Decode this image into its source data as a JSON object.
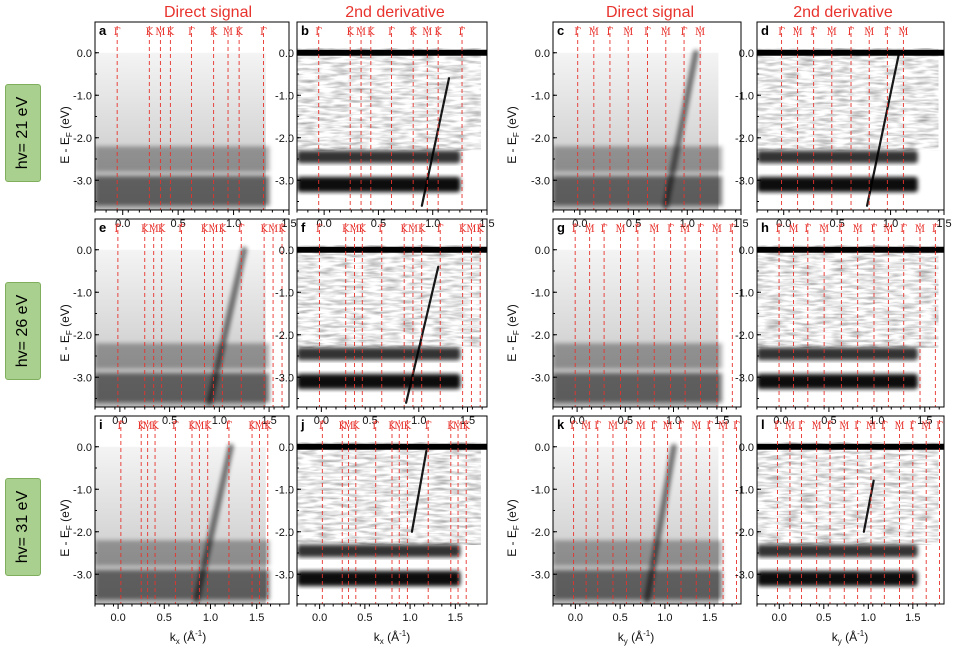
{
  "headers": {
    "left_direct": "Direct signal",
    "left_deriv": "2nd derivative",
    "right_direct": "Direct signal",
    "right_deriv": "2nd derivative"
  },
  "row_labels": [
    "hv= 21 eV",
    "hv= 26 eV",
    "hv= 31 eV"
  ],
  "axis_text": {
    "ylabel_main": "E - E",
    "ylabel_sub": "F",
    "ylabel_unit": " (eV)",
    "kx_main": "k",
    "kx_sub": "x",
    "ky_main": "k",
    "ky_sub": "y",
    "kunit": " (Å",
    "kunit_sup": "-1",
    "kunit_close": ")"
  },
  "colors": {
    "header_red": "#e8322c",
    "marker_red": "#e8322c",
    "row_label_green": "#a9d08e"
  },
  "chart_data": [
    {
      "type": "heatmap",
      "panel": "a",
      "photon_energy": "hv= 21 eV",
      "mode": "Direct signal",
      "axis": "kx",
      "ylim": [
        -3.7,
        0.3
      ],
      "xlim": [
        -0.25,
        1.5
      ],
      "xticks": [
        0.0,
        0.5,
        1.0,
        1.5
      ],
      "yticks": [
        0.0,
        -1.0,
        -2.0,
        -3.0
      ],
      "points": [
        {
          "label": "Γ",
          "k": -0.05
        },
        {
          "label": "K",
          "k": 0.24
        },
        {
          "label": "M",
          "k": 0.34
        },
        {
          "label": "K",
          "k": 0.43
        },
        {
          "label": "Γ",
          "k": 0.62
        },
        {
          "label": "K",
          "k": 0.82
        },
        {
          "label": "M",
          "k": 0.95
        },
        {
          "label": "K",
          "k": 1.05
        },
        {
          "label": "Γ",
          "k": 1.27
        }
      ],
      "bands": {
        "valence": [
          {
            "e": -2.5,
            "w": 0.3,
            "s": 0.45
          },
          {
            "e": -3.25,
            "w": 0.35,
            "s": 0.75
          }
        ],
        "fade_start": -1.8
      },
      "dispersive_band": null
    },
    {
      "type": "heatmap",
      "panel": "b",
      "photon_energy": "hv= 21 eV",
      "mode": "2nd derivative",
      "axis": "kx",
      "ylim": [
        -3.7,
        0.3
      ],
      "xlim": [
        -0.25,
        1.5
      ],
      "xticks": [
        0.0,
        0.5,
        1.0,
        1.5
      ],
      "yticks": [
        0.0,
        -1.0,
        -2.0,
        -3.0
      ],
      "points": [
        {
          "label": "Γ",
          "k": -0.05
        },
        {
          "label": "K",
          "k": 0.24
        },
        {
          "label": "M",
          "k": 0.34
        },
        {
          "label": "K",
          "k": 0.43
        },
        {
          "label": "Γ",
          "k": 0.62
        },
        {
          "label": "K",
          "k": 0.82
        },
        {
          "label": "M",
          "k": 0.95
        },
        {
          "label": "K",
          "k": 1.05
        },
        {
          "label": "Γ",
          "k": 1.27
        }
      ],
      "bands": {
        "valence": [
          {
            "e": -2.45,
            "w": 0.15,
            "s": 0.8
          },
          {
            "e": -3.1,
            "w": 0.18,
            "s": 0.95
          }
        ],
        "fade_start": null
      },
      "dispersive_band": {
        "k_top": 1.15,
        "e_top": -0.6,
        "k_bottom": 0.9,
        "e_bottom": -3.6
      }
    },
    {
      "type": "heatmap",
      "panel": "c",
      "photon_energy": "hv= 21 eV",
      "mode": "Direct signal",
      "axis": "ky",
      "ylim": [
        -3.7,
        0.3
      ],
      "xlim": [
        -0.25,
        1.5
      ],
      "xticks": [
        0.0,
        0.5,
        1.0,
        1.5
      ],
      "yticks": [
        0.0,
        -1.0,
        -2.0,
        -3.0
      ],
      "points": [
        {
          "label": "Γ",
          "k": -0.02
        },
        {
          "label": "M",
          "k": 0.13
        },
        {
          "label": "Γ",
          "k": 0.28
        },
        {
          "label": "M",
          "k": 0.45
        },
        {
          "label": "Γ",
          "k": 0.63
        },
        {
          "label": "M",
          "k": 0.8
        },
        {
          "label": "Γ",
          "k": 0.97
        },
        {
          "label": "M",
          "k": 1.12
        }
      ],
      "bands": {
        "valence": [
          {
            "e": -2.5,
            "w": 0.3,
            "s": 0.45
          },
          {
            "e": -3.25,
            "w": 0.35,
            "s": 0.75
          }
        ],
        "fade_start": -1.8
      },
      "dispersive_band": {
        "k_top": 1.08,
        "e_top": 0.0,
        "k_bottom": 0.8,
        "e_bottom": -3.6
      }
    },
    {
      "type": "heatmap",
      "panel": "d",
      "photon_energy": "hv= 21 eV",
      "mode": "2nd derivative",
      "axis": "ky",
      "ylim": [
        -3.7,
        0.3
      ],
      "xlim": [
        -0.25,
        1.5
      ],
      "xticks": [
        0.0,
        0.5,
        1.0,
        1.5
      ],
      "yticks": [
        0.0,
        -1.0,
        -2.0,
        -3.0
      ],
      "points": [
        {
          "label": "Γ",
          "k": -0.02
        },
        {
          "label": "M",
          "k": 0.13
        },
        {
          "label": "Γ",
          "k": 0.28
        },
        {
          "label": "M",
          "k": 0.45
        },
        {
          "label": "Γ",
          "k": 0.63
        },
        {
          "label": "M",
          "k": 0.8
        },
        {
          "label": "Γ",
          "k": 0.97
        },
        {
          "label": "M",
          "k": 1.12
        }
      ],
      "bands": {
        "valence": [
          {
            "e": -2.45,
            "w": 0.15,
            "s": 0.8
          },
          {
            "e": -3.1,
            "w": 0.18,
            "s": 0.95
          }
        ],
        "fade_start": null
      },
      "dispersive_band": {
        "k_top": 1.08,
        "e_top": 0.0,
        "k_bottom": 0.78,
        "e_bottom": -3.6
      }
    },
    {
      "type": "heatmap",
      "panel": "e",
      "photon_energy": "hv= 26 eV",
      "mode": "Direct signal",
      "axis": "kx",
      "ylim": [
        -3.7,
        0.3
      ],
      "xlim": [
        -0.25,
        1.7
      ],
      "xticks": [
        0.0,
        0.5,
        1.0,
        1.5
      ],
      "yticks": [
        0.0,
        -1.0,
        -2.0,
        -3.0
      ],
      "points": [
        {
          "label": "Γ",
          "k": -0.02
        },
        {
          "label": "K",
          "k": 0.25
        },
        {
          "label": "M",
          "k": 0.34
        },
        {
          "label": "K",
          "k": 0.42
        },
        {
          "label": "Γ",
          "k": 0.62
        },
        {
          "label": "K",
          "k": 0.85
        },
        {
          "label": "M",
          "k": 0.94
        },
        {
          "label": "K",
          "k": 1.03
        },
        {
          "label": "Γ",
          "k": 1.22
        },
        {
          "label": "K",
          "k": 1.45
        },
        {
          "label": "M",
          "k": 1.54
        },
        {
          "label": "K",
          "k": 1.63
        }
      ],
      "bands": {
        "valence": [
          {
            "e": -2.5,
            "w": 0.3,
            "s": 0.45
          },
          {
            "e": -3.25,
            "w": 0.35,
            "s": 0.75
          }
        ],
        "fade_start": -1.8
      },
      "dispersive_band": {
        "k_top": 1.25,
        "e_top": 0.0,
        "k_bottom": 0.9,
        "e_bottom": -3.6
      }
    },
    {
      "type": "heatmap",
      "panel": "f",
      "photon_energy": "hv= 26 eV",
      "mode": "2nd derivative",
      "axis": "kx",
      "ylim": [
        -3.7,
        0.3
      ],
      "xlim": [
        -0.25,
        1.7
      ],
      "xticks": [
        0.0,
        0.5,
        1.0,
        1.5
      ],
      "yticks": [
        0.0,
        -1.0,
        -2.0,
        -3.0
      ],
      "points": [
        {
          "label": "Γ",
          "k": -0.02
        },
        {
          "label": "K",
          "k": 0.25
        },
        {
          "label": "M",
          "k": 0.34
        },
        {
          "label": "K",
          "k": 0.42
        },
        {
          "label": "Γ",
          "k": 0.62
        },
        {
          "label": "K",
          "k": 0.85
        },
        {
          "label": "M",
          "k": 0.94
        },
        {
          "label": "K",
          "k": 1.03
        },
        {
          "label": "Γ",
          "k": 1.22
        },
        {
          "label": "K",
          "k": 1.45
        },
        {
          "label": "M",
          "k": 1.54
        },
        {
          "label": "K",
          "k": 1.63
        }
      ],
      "bands": {
        "valence": [
          {
            "e": -2.45,
            "w": 0.15,
            "s": 0.8
          },
          {
            "e": -3.1,
            "w": 0.18,
            "s": 0.95
          }
        ],
        "fade_start": null
      },
      "dispersive_band": {
        "k_top": 1.2,
        "e_top": -0.4,
        "k_bottom": 0.87,
        "e_bottom": -3.6
      }
    },
    {
      "type": "heatmap",
      "panel": "g",
      "photon_energy": "hv= 26 eV",
      "mode": "Direct signal",
      "axis": "ky",
      "ylim": [
        -3.7,
        0.3
      ],
      "xlim": [
        -0.25,
        1.7
      ],
      "xticks": [
        0.0,
        0.5,
        1.0,
        1.5
      ],
      "yticks": [
        0.0,
        -1.0,
        -2.0,
        -3.0
      ],
      "points": [
        {
          "label": "Γ",
          "k": -0.02
        },
        {
          "label": "M",
          "k": 0.13
        },
        {
          "label": "Γ",
          "k": 0.28
        },
        {
          "label": "M",
          "k": 0.45
        },
        {
          "label": "Γ",
          "k": 0.63
        },
        {
          "label": "M",
          "k": 0.8
        },
        {
          "label": "Γ",
          "k": 0.97
        },
        {
          "label": "M",
          "k": 1.12
        },
        {
          "label": "Γ",
          "k": 1.28
        },
        {
          "label": "M",
          "k": 1.45
        },
        {
          "label": "Γ",
          "k": 1.61
        }
      ],
      "bands": {
        "valence": [
          {
            "e": -2.5,
            "w": 0.3,
            "s": 0.45
          },
          {
            "e": -3.25,
            "w": 0.35,
            "s": 0.75
          }
        ],
        "fade_start": -1.8
      },
      "dispersive_band": null
    },
    {
      "type": "heatmap",
      "panel": "h",
      "photon_energy": "hv= 26 eV",
      "mode": "2nd derivative",
      "axis": "ky",
      "ylim": [
        -3.7,
        0.3
      ],
      "xlim": [
        -0.25,
        1.7
      ],
      "xticks": [
        0.0,
        0.5,
        1.0,
        1.5
      ],
      "yticks": [
        0.0,
        -1.0,
        -2.0,
        -3.0
      ],
      "points": [
        {
          "label": "Γ",
          "k": -0.02
        },
        {
          "label": "M",
          "k": 0.13
        },
        {
          "label": "Γ",
          "k": 0.28
        },
        {
          "label": "M",
          "k": 0.45
        },
        {
          "label": "Γ",
          "k": 0.63
        },
        {
          "label": "M",
          "k": 0.8
        },
        {
          "label": "Γ",
          "k": 0.97
        },
        {
          "label": "M",
          "k": 1.12
        },
        {
          "label": "Γ",
          "k": 1.28
        },
        {
          "label": "M",
          "k": 1.45
        },
        {
          "label": "Γ",
          "k": 1.61
        }
      ],
      "bands": {
        "valence": [
          {
            "e": -2.45,
            "w": 0.15,
            "s": 0.8
          },
          {
            "e": -3.1,
            "w": 0.18,
            "s": 0.95
          }
        ],
        "fade_start": null
      },
      "dispersive_band": null
    },
    {
      "type": "heatmap",
      "panel": "i",
      "photon_energy": "hv= 31 eV",
      "mode": "Direct signal",
      "axis": "kx",
      "ylim": [
        -3.7,
        0.3
      ],
      "xlim": [
        -0.25,
        1.85
      ],
      "xticks": [
        0.0,
        0.5,
        1.0,
        1.5
      ],
      "yticks": [
        0.0,
        -1.0,
        -2.0,
        -3.0
      ],
      "points": [
        {
          "label": "Γ",
          "k": 0.03
        },
        {
          "label": "K",
          "k": 0.25
        },
        {
          "label": "M",
          "k": 0.32
        },
        {
          "label": "K",
          "k": 0.4
        },
        {
          "label": "Γ",
          "k": 0.62
        },
        {
          "label": "K",
          "k": 0.8
        },
        {
          "label": "M",
          "k": 0.88
        },
        {
          "label": "K",
          "k": 0.97
        },
        {
          "label": "Γ",
          "k": 1.2
        },
        {
          "label": "K",
          "k": 1.45
        },
        {
          "label": "M",
          "k": 1.53
        },
        {
          "label": "K",
          "k": 1.62
        }
      ],
      "bands": {
        "valence": [
          {
            "e": -2.5,
            "w": 0.3,
            "s": 0.45
          },
          {
            "e": -3.25,
            "w": 0.35,
            "s": 0.75
          }
        ],
        "fade_start": -1.8
      },
      "dispersive_band": {
        "k_top": 1.22,
        "e_top": 0.0,
        "k_bottom": 0.85,
        "e_bottom": -3.6
      }
    },
    {
      "type": "heatmap",
      "panel": "j",
      "photon_energy": "hv= 31 eV",
      "mode": "2nd derivative",
      "axis": "kx",
      "ylim": [
        -3.7,
        0.3
      ],
      "xlim": [
        -0.25,
        1.85
      ],
      "xticks": [
        0.0,
        0.5,
        1.0,
        1.5
      ],
      "yticks": [
        0.0,
        -1.0,
        -2.0,
        -3.0
      ],
      "points": [
        {
          "label": "Γ",
          "k": 0.03
        },
        {
          "label": "K",
          "k": 0.25
        },
        {
          "label": "M",
          "k": 0.32
        },
        {
          "label": "K",
          "k": 0.4
        },
        {
          "label": "Γ",
          "k": 0.62
        },
        {
          "label": "K",
          "k": 0.8
        },
        {
          "label": "M",
          "k": 0.88
        },
        {
          "label": "K",
          "k": 0.97
        },
        {
          "label": "Γ",
          "k": 1.2
        },
        {
          "label": "K",
          "k": 1.45
        },
        {
          "label": "M",
          "k": 1.53
        },
        {
          "label": "K",
          "k": 1.62
        }
      ],
      "bands": {
        "valence": [
          {
            "e": -2.45,
            "w": 0.15,
            "s": 0.8
          },
          {
            "e": -3.1,
            "w": 0.18,
            "s": 0.95
          }
        ],
        "fade_start": null
      },
      "dispersive_band": {
        "k_top": 1.18,
        "e_top": -0.1,
        "k_bottom": 1.02,
        "e_bottom": -2.0
      }
    },
    {
      "type": "heatmap",
      "panel": "k",
      "photon_energy": "hv= 31 eV",
      "mode": "Direct signal",
      "axis": "ky",
      "ylim": [
        -3.7,
        0.3
      ],
      "xlim": [
        -0.25,
        1.85
      ],
      "xticks": [
        0.0,
        0.5,
        1.0,
        1.5
      ],
      "yticks": [
        0.0,
        -1.0,
        -2.0,
        -3.0
      ],
      "points": [
        {
          "label": "Γ",
          "k": -0.02
        },
        {
          "label": "M",
          "k": 0.12
        },
        {
          "label": "Γ",
          "k": 0.25
        },
        {
          "label": "M",
          "k": 0.42
        },
        {
          "label": "Γ",
          "k": 0.57
        },
        {
          "label": "M",
          "k": 0.73
        },
        {
          "label": "Γ",
          "k": 0.88
        },
        {
          "label": "M",
          "k": 1.03
        },
        {
          "label": "Γ",
          "k": 1.18
        },
        {
          "label": "M",
          "k": 1.35
        },
        {
          "label": "Γ",
          "k": 1.5
        },
        {
          "label": "M",
          "k": 1.65
        },
        {
          "label": "Γ",
          "k": 1.8
        }
      ],
      "bands": {
        "valence": [
          {
            "e": -2.5,
            "w": 0.3,
            "s": 0.45
          },
          {
            "e": -3.25,
            "w": 0.35,
            "s": 0.75
          }
        ],
        "fade_start": -1.8
      },
      "dispersive_band": {
        "k_top": 1.1,
        "e_top": 0.0,
        "k_bottom": 0.8,
        "e_bottom": -3.6
      }
    },
    {
      "type": "heatmap",
      "panel": "l",
      "photon_energy": "hv= 31 eV",
      "mode": "2nd derivative",
      "axis": "ky",
      "ylim": [
        -3.7,
        0.3
      ],
      "xlim": [
        -0.25,
        1.85
      ],
      "xticks": [
        0.0,
        0.5,
        1.0,
        1.5
      ],
      "yticks": [
        0.0,
        -1.0,
        -2.0,
        -3.0
      ],
      "points": [
        {
          "label": "Γ",
          "k": -0.02
        },
        {
          "label": "M",
          "k": 0.12
        },
        {
          "label": "Γ",
          "k": 0.25
        },
        {
          "label": "M",
          "k": 0.42
        },
        {
          "label": "Γ",
          "k": 0.57
        },
        {
          "label": "M",
          "k": 0.73
        },
        {
          "label": "Γ",
          "k": 0.88
        },
        {
          "label": "M",
          "k": 1.03
        },
        {
          "label": "Γ",
          "k": 1.18
        },
        {
          "label": "M",
          "k": 1.35
        },
        {
          "label": "Γ",
          "k": 1.5
        },
        {
          "label": "M",
          "k": 1.65
        },
        {
          "label": "Γ",
          "k": 1.8
        }
      ],
      "bands": {
        "valence": [
          {
            "e": -2.45,
            "w": 0.15,
            "s": 0.8
          },
          {
            "e": -3.1,
            "w": 0.18,
            "s": 0.95
          }
        ],
        "fade_start": null
      },
      "dispersive_band": {
        "k_top": 1.06,
        "e_top": -0.8,
        "k_bottom": 0.95,
        "e_bottom": -2.0
      }
    }
  ]
}
